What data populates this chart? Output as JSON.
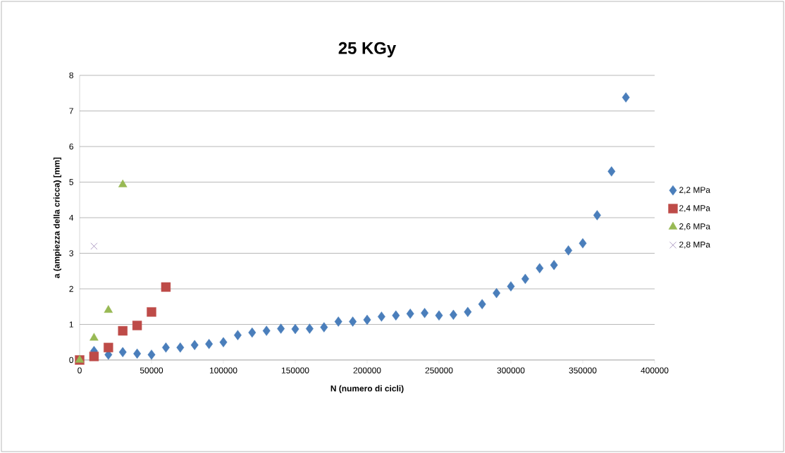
{
  "chart_data": {
    "type": "scatter",
    "title": "25 KGy",
    "xlabel": "N (numero di cicli)",
    "ylabel": "a (ampiezza della cricca) [mm]",
    "xlim": [
      0,
      400000
    ],
    "xticks": [
      0,
      50000,
      100000,
      150000,
      200000,
      250000,
      300000,
      350000,
      400000
    ],
    "ylim": [
      0,
      8
    ],
    "yticks": [
      0,
      1,
      2,
      3,
      4,
      5,
      6,
      7,
      8
    ],
    "grid": "y",
    "legend": "right",
    "series": [
      {
        "name": "2,2 MPa",
        "color": "#4a7ebb",
        "marker": "diamond",
        "x": [
          10000,
          20000,
          30000,
          40000,
          50000,
          60000,
          70000,
          80000,
          90000,
          100000,
          110000,
          120000,
          130000,
          140000,
          150000,
          160000,
          170000,
          180000,
          190000,
          200000,
          210000,
          220000,
          230000,
          240000,
          250000,
          260000,
          270000,
          280000,
          290000,
          300000,
          310000,
          320000,
          330000,
          340000,
          350000,
          360000,
          370000,
          380000
        ],
        "values": [
          0.25,
          0.15,
          0.22,
          0.18,
          0.15,
          0.35,
          0.35,
          0.42,
          0.45,
          0.5,
          0.7,
          0.77,
          0.82,
          0.88,
          0.87,
          0.88,
          0.92,
          1.08,
          1.08,
          1.13,
          1.22,
          1.25,
          1.3,
          1.32,
          1.25,
          1.27,
          1.35,
          1.57,
          1.88,
          2.07,
          2.28,
          2.58,
          2.67,
          3.08,
          3.28,
          4.07,
          5.3,
          7.38
        ]
      },
      {
        "name": "2,4 MPa",
        "color": "#be4b48",
        "marker": "square",
        "x": [
          0,
          10000,
          20000,
          30000,
          40000,
          50000,
          60000
        ],
        "values": [
          0,
          0.1,
          0.35,
          0.82,
          0.97,
          1.35,
          2.05
        ]
      },
      {
        "name": "2,6 MPa",
        "color": "#98b954",
        "marker": "triangle",
        "x": [
          0,
          10000,
          20000,
          30000
        ],
        "values": [
          0,
          0.62,
          1.4,
          4.93
        ]
      },
      {
        "name": "2,8 MPa",
        "color": "#7d60a0",
        "marker": "cross",
        "x": [
          10000
        ],
        "values": [
          3.2
        ]
      }
    ]
  }
}
